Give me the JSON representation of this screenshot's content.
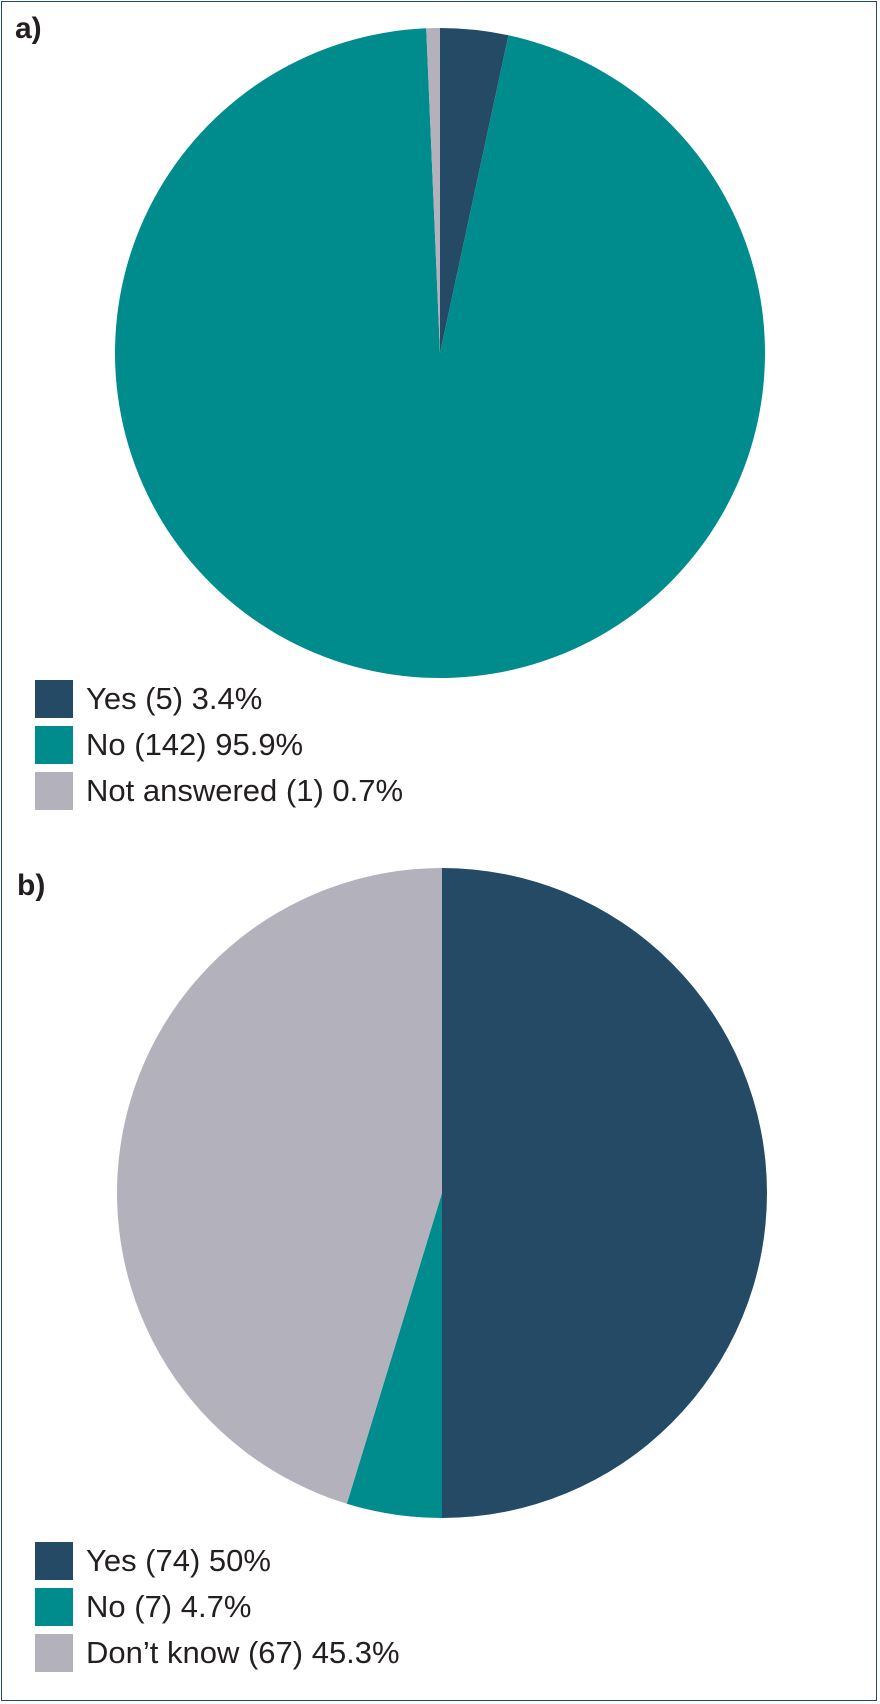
{
  "panels": {
    "a": {
      "label": "a)"
    },
    "b": {
      "label": "b)"
    }
  },
  "chart_data": [
    {
      "type": "pie",
      "panel_label": "a)",
      "title": "",
      "start_angle_deg": 0,
      "direction": "clockwise",
      "legend_position": "bottom-left",
      "slices": [
        {
          "label": "Yes",
          "count": 5,
          "percent": 3.4,
          "legend_text": "Yes (5) 3.4%",
          "color": "#244a66"
        },
        {
          "label": "No",
          "count": 142,
          "percent": 95.9,
          "legend_text": "No (142) 95.9%",
          "color": "#008b8d"
        },
        {
          "label": "Not answered",
          "count": 1,
          "percent": 0.7,
          "legend_text": "Not answered (1) 0.7%",
          "color": "#b2b1bc"
        }
      ]
    },
    {
      "type": "pie",
      "panel_label": "b)",
      "title": "",
      "start_angle_deg": 0,
      "direction": "clockwise",
      "legend_position": "bottom-left",
      "slices": [
        {
          "label": "Yes",
          "count": 74,
          "percent": 50,
          "legend_text": "Yes (74) 50%",
          "color": "#244a66"
        },
        {
          "label": "No",
          "count": 7,
          "percent": 4.7,
          "legend_text": "No (7) 4.7%",
          "color": "#008b8d"
        },
        {
          "label": "Don’t know",
          "count": 67,
          "percent": 45.3,
          "legend_text": "Don’t know (67) 45.3%",
          "color": "#b2b1bc"
        }
      ]
    }
  ]
}
